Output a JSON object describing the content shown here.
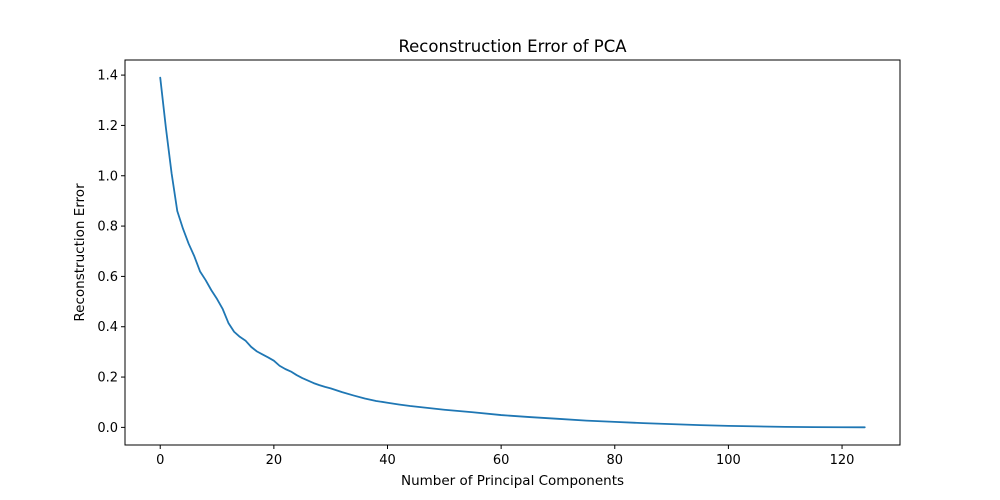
{
  "chart_data": {
    "type": "line",
    "title": "Reconstruction Error of PCA",
    "xlabel": "Number of Principal Components",
    "ylabel": "Reconstruction Error",
    "xlim": [
      -6.2,
      130.2
    ],
    "ylim": [
      -0.07,
      1.46
    ],
    "xticks": [
      0,
      20,
      40,
      60,
      80,
      100,
      120
    ],
    "yticks": [
      0.0,
      0.2,
      0.4,
      0.6,
      0.8,
      1.0,
      1.2,
      1.4
    ],
    "xtick_labels": [
      "0",
      "20",
      "40",
      "60",
      "80",
      "100",
      "120"
    ],
    "ytick_labels": [
      "0.0",
      "0.2",
      "0.4",
      "0.6",
      "0.8",
      "1.0",
      "1.2",
      "1.4"
    ],
    "grid": false,
    "line_color": "#1f77b4",
    "series": [
      {
        "x": [
          0,
          1,
          2,
          3,
          4,
          5,
          6,
          7,
          8,
          9,
          10,
          11,
          12,
          13,
          14,
          15,
          16,
          17,
          18,
          19,
          20,
          21,
          22,
          23,
          24,
          25,
          26,
          27,
          28,
          29,
          30,
          32,
          34,
          36,
          38,
          40,
          42,
          44,
          46,
          48,
          50,
          55,
          60,
          65,
          70,
          75,
          80,
          85,
          90,
          95,
          100,
          105,
          110,
          115,
          120,
          124
        ],
        "y": [
          1.39,
          1.19,
          1.01,
          0.86,
          0.79,
          0.73,
          0.68,
          0.62,
          0.585,
          0.545,
          0.51,
          0.47,
          0.415,
          0.38,
          0.36,
          0.345,
          0.32,
          0.302,
          0.29,
          0.278,
          0.265,
          0.245,
          0.232,
          0.222,
          0.208,
          0.196,
          0.186,
          0.176,
          0.168,
          0.161,
          0.155,
          0.14,
          0.127,
          0.115,
          0.105,
          0.098,
          0.091,
          0.085,
          0.08,
          0.075,
          0.07,
          0.06,
          0.049,
          0.041,
          0.034,
          0.027,
          0.022,
          0.017,
          0.013,
          0.009,
          0.006,
          0.004,
          0.002,
          0.001,
          0.0005,
          0.0003
        ]
      }
    ]
  }
}
